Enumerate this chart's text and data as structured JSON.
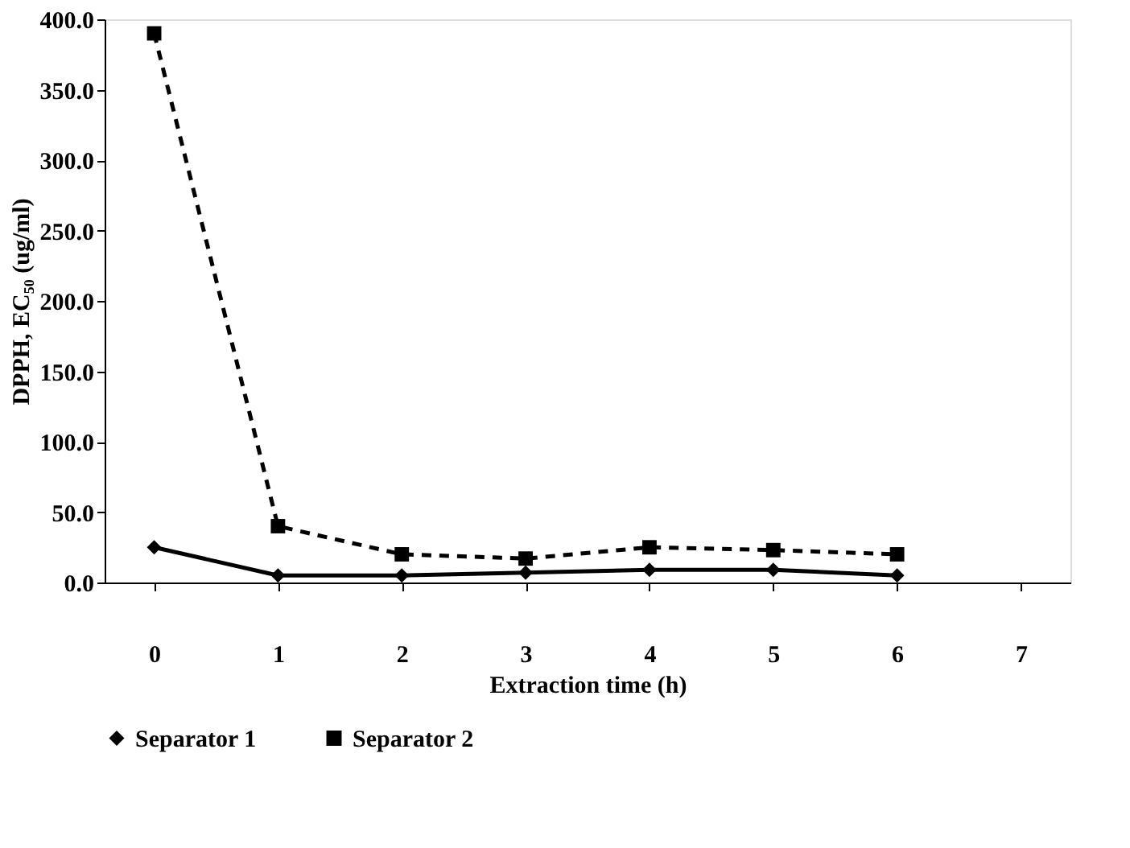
{
  "chart_data": {
    "type": "line",
    "xlabel": "Extraction time (h)",
    "ylabel": "DPPH, EC₅₀ (ug/ml)",
    "x": [
      0,
      1,
      2,
      3,
      4,
      5,
      6
    ],
    "series": [
      {
        "name": "Separator 1",
        "color": "#000000",
        "marker": "diamond",
        "line_style": "solid",
        "values": [
          25,
          5,
          5,
          7,
          9,
          9,
          5
        ]
      },
      {
        "name": "Separator 2",
        "color": "#000000",
        "marker": "square",
        "line_style": "dashed",
        "values": [
          390,
          40,
          20,
          17,
          25,
          23,
          20
        ]
      }
    ],
    "xlim": [
      -0.4,
      7.4
    ],
    "xticks": [
      0,
      1,
      2,
      3,
      4,
      5,
      6,
      7
    ],
    "ylim": [
      0,
      400
    ],
    "yticks": [
      {
        "value": 0,
        "label": "0.0"
      },
      {
        "value": 50,
        "label": "50.0"
      },
      {
        "value": 100,
        "label": "100.0"
      },
      {
        "value": 150,
        "label": "150.0"
      },
      {
        "value": 200,
        "label": "200.0"
      },
      {
        "value": 250,
        "label": "250.0"
      },
      {
        "value": 300,
        "label": "300.0"
      },
      {
        "value": 350,
        "label": "350.0"
      },
      {
        "value": 400,
        "label": "400.0"
      }
    ],
    "grid": false,
    "legend": "bottom"
  }
}
